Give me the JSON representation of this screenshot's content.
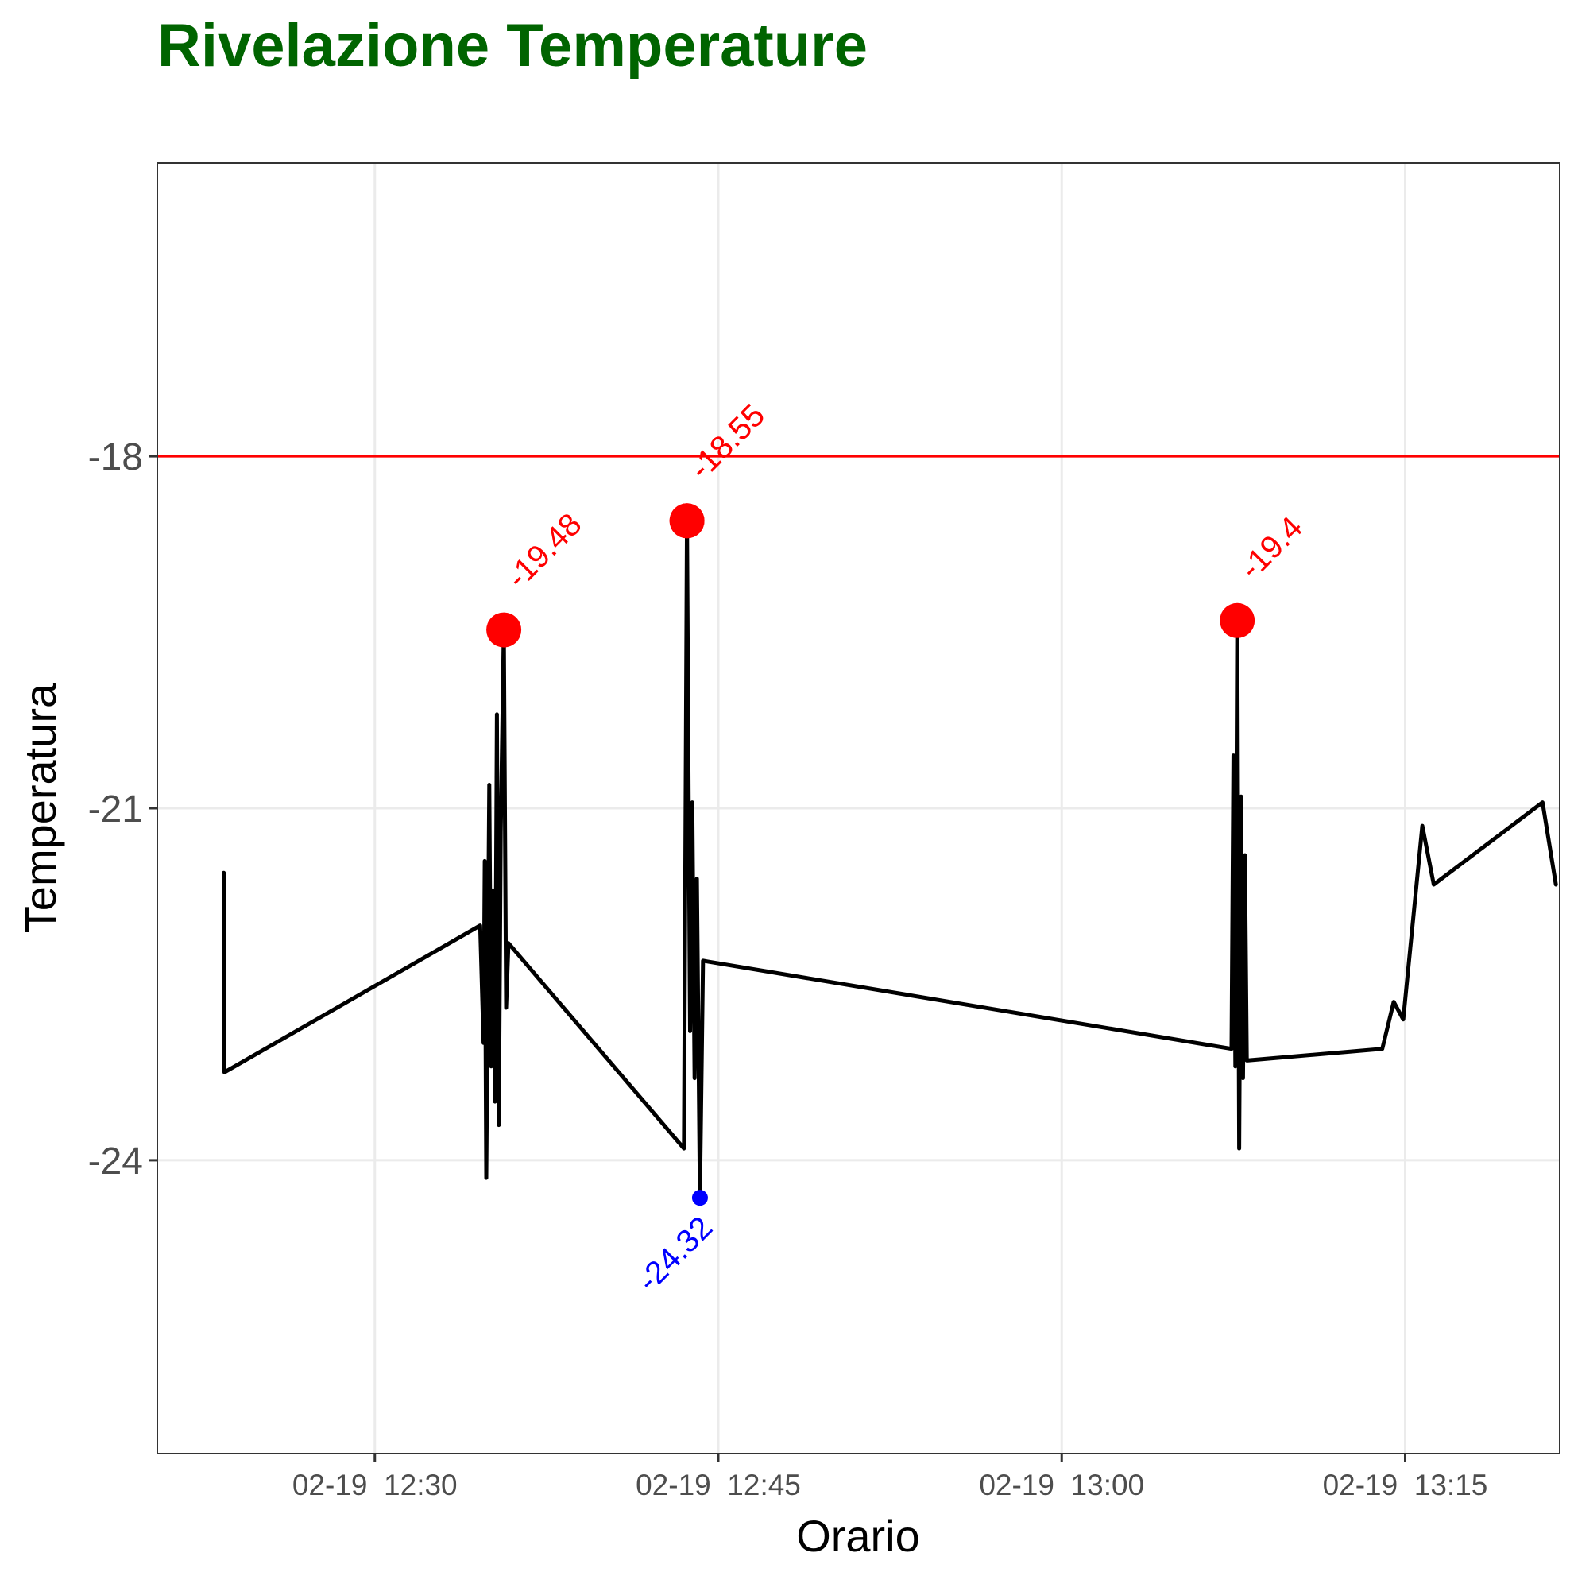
{
  "chart_data": {
    "type": "line",
    "title": "Rivelazione Temperature",
    "xlabel": "Orario",
    "ylabel": "Temperatura",
    "x_unit": "time",
    "xlim": [
      "12:20:30",
      "13:21:45"
    ],
    "ylim": [
      -26.5,
      -15.5
    ],
    "x_ticks": [
      {
        "value": "12:30",
        "label": "02-19  12:30"
      },
      {
        "value": "12:45",
        "label": "02-19  12:45"
      },
      {
        "value": "13:00",
        "label": "02-19  13:00"
      },
      {
        "value": "13:15",
        "label": "02-19  13:15"
      }
    ],
    "y_ticks": [
      {
        "value": -18,
        "label": "-18"
      },
      {
        "value": -21,
        "label": "-21"
      },
      {
        "value": -24,
        "label": "-24"
      }
    ],
    "grid": true,
    "threshold": {
      "value": -18,
      "color": "#ff0000"
    },
    "series": [
      {
        "color": "#000000",
        "points": [
          [
            "12:23:24",
            -21.55
          ],
          [
            "12:23:25",
            -22.4
          ],
          [
            "12:23:26",
            -23.25
          ],
          [
            "12:34:36",
            -22.0
          ],
          [
            "12:34:45",
            -23.0
          ],
          [
            "12:34:48",
            -21.45
          ],
          [
            "12:34:52",
            -24.15
          ],
          [
            "12:35:00",
            -20.8
          ],
          [
            "12:35:05",
            -23.2
          ],
          [
            "12:35:10",
            -21.7
          ],
          [
            "12:35:15",
            -23.5
          ],
          [
            "12:35:20",
            -20.2
          ],
          [
            "12:35:25",
            -23.7
          ],
          [
            "12:35:30",
            -21.2
          ],
          [
            "12:35:38",
            -19.48
          ],
          [
            "12:35:44",
            -22.7
          ],
          [
            "12:35:50",
            -22.15
          ],
          [
            "12:43:30",
            -23.9
          ],
          [
            "12:43:38",
            -18.55
          ],
          [
            "12:43:46",
            -22.9
          ],
          [
            "12:43:52",
            -20.95
          ],
          [
            "12:43:58",
            -23.3
          ],
          [
            "12:44:04",
            -21.6
          ],
          [
            "12:44:12",
            -24.32
          ],
          [
            "12:44:20",
            -22.3
          ],
          [
            "13:07:25",
            -23.05
          ],
          [
            "13:07:30",
            -20.55
          ],
          [
            "13:07:35",
            -23.2
          ],
          [
            "13:07:40",
            -19.4
          ],
          [
            "13:07:45",
            -23.9
          ],
          [
            "13:07:50",
            -20.9
          ],
          [
            "13:07:55",
            -23.3
          ],
          [
            "13:08:00",
            -21.4
          ],
          [
            "13:08:05",
            -23.15
          ],
          [
            "13:14:00",
            -23.05
          ],
          [
            "13:14:30",
            -22.65
          ],
          [
            "13:14:55",
            -22.8
          ],
          [
            "13:15:45",
            -21.15
          ],
          [
            "13:16:15",
            -21.65
          ],
          [
            "13:21:00",
            -20.95
          ],
          [
            "13:21:35",
            -21.65
          ]
        ]
      }
    ],
    "peaks": [
      {
        "time": "12:35:38",
        "value": -19.48,
        "label": "-19.48",
        "color": "#ff0000",
        "kind": "max"
      },
      {
        "time": "12:43:38",
        "value": -18.55,
        "label": "-18.55",
        "color": "#ff0000",
        "kind": "max"
      },
      {
        "time": "12:43:38",
        "value": -18.55,
        "label": "-18.55",
        "color": "#ff0000",
        "kind": "max"
      },
      {
        "time": "13:07:40",
        "value": -19.4,
        "label": "-19.4",
        "color": "#ff0000",
        "kind": "max"
      },
      {
        "time": "12:44:12",
        "value": -24.32,
        "label": "-24.32",
        "color": "#0000ff",
        "kind": "min"
      }
    ]
  }
}
